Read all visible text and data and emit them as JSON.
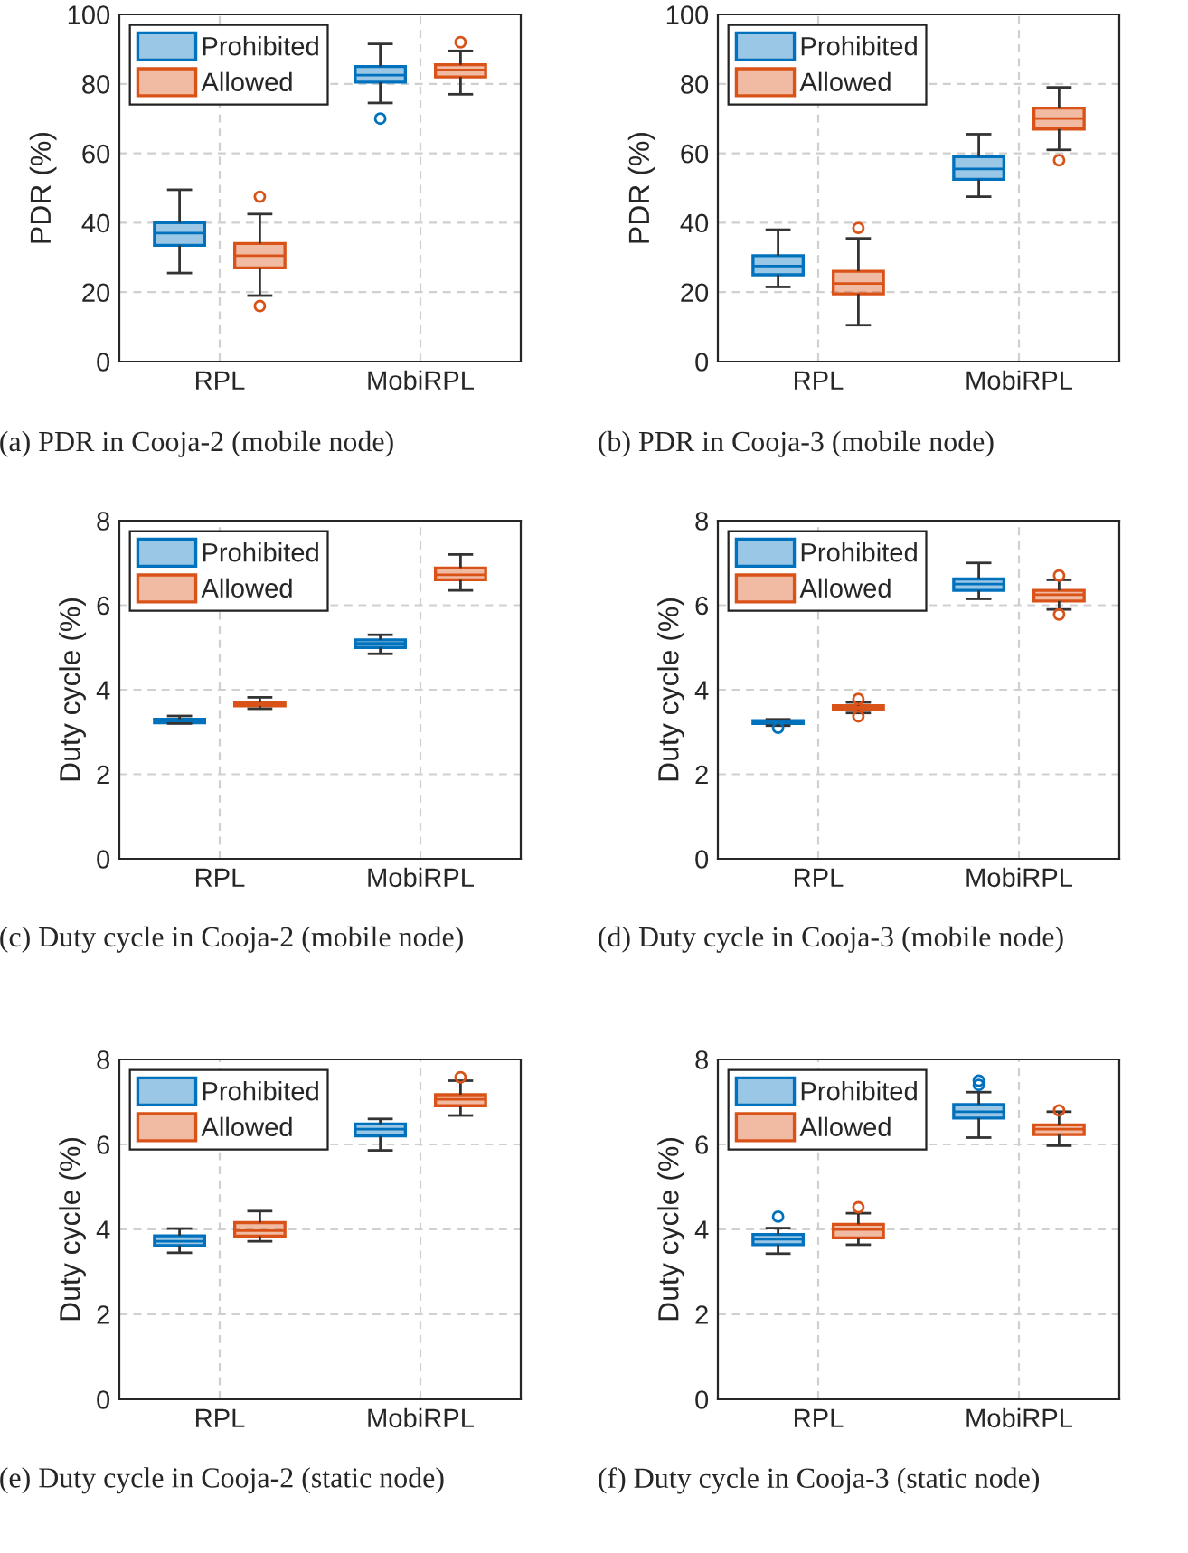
{
  "chart_data": [
    {
      "type": "box",
      "title": "(a) PDR in Cooja-2 (mobile node)",
      "ylabel": "PDR (%)",
      "categories": [
        "RPL",
        "MobiRPL"
      ],
      "ylim": [
        0,
        100
      ],
      "yticks": [
        0,
        20,
        40,
        60,
        80,
        100
      ],
      "grid": true,
      "legend": "top left",
      "series": [
        {
          "name": "Prohibited",
          "color": "#0072bd",
          "boxes": [
            {
              "low": 25.5,
              "q1": 33.5,
              "median": 37,
              "q3": 40,
              "high": 49.5
            },
            {
              "low": 74.5,
              "q1": 80.5,
              "median": 82.5,
              "q3": 85,
              "high": 91.5,
              "outliers": [
                70
              ]
            }
          ]
        },
        {
          "name": "Allowed",
          "color": "#d95319",
          "boxes": [
            {
              "low": 19,
              "q1": 27,
              "median": 30.5,
              "q3": 34,
              "high": 42.5,
              "outliers": [
                47.5,
                16
              ]
            },
            {
              "low": 77,
              "q1": 82,
              "median": 84,
              "q3": 85.5,
              "high": 89.5,
              "outliers": [
                92
              ]
            }
          ]
        }
      ]
    },
    {
      "type": "box",
      "title": "(b) PDR in Cooja-3 (mobile node)",
      "ylabel": "PDR (%)",
      "categories": [
        "RPL",
        "MobiRPL"
      ],
      "ylim": [
        0,
        100
      ],
      "yticks": [
        0,
        20,
        40,
        60,
        80,
        100
      ],
      "grid": true,
      "legend": "top left",
      "series": [
        {
          "name": "Prohibited",
          "color": "#0072bd",
          "boxes": [
            {
              "low": 21.5,
              "q1": 25,
              "median": 27.5,
              "q3": 30.5,
              "high": 38
            },
            {
              "low": 47.5,
              "q1": 52.5,
              "median": 55.5,
              "q3": 59,
              "high": 65.5
            }
          ]
        },
        {
          "name": "Allowed",
          "color": "#d95319",
          "boxes": [
            {
              "low": 10.5,
              "q1": 19.5,
              "median": 22.5,
              "q3": 26,
              "high": 35.5,
              "outliers": [
                38.5
              ]
            },
            {
              "low": 61,
              "q1": 67,
              "median": 70,
              "q3": 73,
              "high": 79,
              "outliers": [
                58
              ]
            }
          ]
        }
      ]
    },
    {
      "type": "box",
      "title": "(c) Duty cycle in Cooja-2 (mobile node)",
      "ylabel": "Duty cycle (%)",
      "categories": [
        "RPL",
        "MobiRPL"
      ],
      "ylim": [
        0,
        8
      ],
      "yticks": [
        0,
        2,
        4,
        6,
        8
      ],
      "grid": true,
      "legend": "top left",
      "series": [
        {
          "name": "Prohibited",
          "color": "#0072bd",
          "boxes": [
            {
              "low": 3.2,
              "q1": 3.22,
              "median": 3.27,
              "q3": 3.3,
              "high": 3.38
            },
            {
              "low": 4.85,
              "q1": 5.0,
              "median": 5.1,
              "q3": 5.18,
              "high": 5.3
            }
          ]
        },
        {
          "name": "Allowed",
          "color": "#d95319",
          "boxes": [
            {
              "low": 3.55,
              "q1": 3.62,
              "median": 3.67,
              "q3": 3.7,
              "high": 3.82
            },
            {
              "low": 6.35,
              "q1": 6.6,
              "median": 6.72,
              "q3": 6.88,
              "high": 7.2
            }
          ]
        }
      ]
    },
    {
      "type": "box",
      "title": "(d) Duty cycle in Cooja-3 (mobile node)",
      "ylabel": "Duty cycle (%)",
      "categories": [
        "RPL",
        "MobiRPL"
      ],
      "ylim": [
        0,
        8
      ],
      "yticks": [
        0,
        2,
        4,
        6,
        8
      ],
      "grid": true,
      "legend": "top left",
      "series": [
        {
          "name": "Prohibited",
          "color": "#0072bd",
          "boxes": [
            {
              "low": 3.15,
              "q1": 3.2,
              "median": 3.23,
              "q3": 3.27,
              "high": 3.3,
              "outliers": [
                3.1
              ]
            },
            {
              "low": 6.15,
              "q1": 6.35,
              "median": 6.5,
              "q3": 6.62,
              "high": 7.0
            }
          ]
        },
        {
          "name": "Allowed",
          "color": "#d95319",
          "boxes": [
            {
              "low": 3.45,
              "q1": 3.52,
              "median": 3.57,
              "q3": 3.62,
              "high": 3.7,
              "outliers": [
                3.78,
                3.37
              ]
            },
            {
              "low": 5.9,
              "q1": 6.1,
              "median": 6.25,
              "q3": 6.35,
              "high": 6.6,
              "outliers": [
                6.7,
                5.78
              ]
            }
          ]
        }
      ]
    },
    {
      "type": "box",
      "title": "(e) Duty cycle in Cooja-2 (static node)",
      "ylabel": "Duty cycle (%)",
      "categories": [
        "RPL",
        "MobiRPL"
      ],
      "ylim": [
        0,
        8
      ],
      "yticks": [
        0,
        2,
        4,
        6,
        8
      ],
      "grid": true,
      "legend": "top left",
      "series": [
        {
          "name": "Prohibited",
          "color": "#0072bd",
          "boxes": [
            {
              "low": 3.45,
              "q1": 3.62,
              "median": 3.72,
              "q3": 3.85,
              "high": 4.02
            },
            {
              "low": 5.86,
              "q1": 6.2,
              "median": 6.36,
              "q3": 6.48,
              "high": 6.6
            }
          ]
        },
        {
          "name": "Allowed",
          "color": "#d95319",
          "boxes": [
            {
              "low": 3.72,
              "q1": 3.84,
              "median": 3.97,
              "q3": 4.16,
              "high": 4.43
            },
            {
              "low": 6.68,
              "q1": 6.91,
              "median": 7.06,
              "q3": 7.17,
              "high": 7.5,
              "outliers": [
                7.58
              ]
            }
          ]
        }
      ]
    },
    {
      "type": "box",
      "title": "(f) Duty cycle in Cooja-3 (static node)",
      "ylabel": "Duty cycle (%)",
      "categories": [
        "RPL",
        "MobiRPL"
      ],
      "ylim": [
        0,
        8
      ],
      "yticks": [
        0,
        2,
        4,
        6,
        8
      ],
      "grid": true,
      "legend": "top left",
      "series": [
        {
          "name": "Prohibited",
          "color": "#0072bd",
          "boxes": [
            {
              "low": 3.43,
              "q1": 3.64,
              "median": 3.77,
              "q3": 3.88,
              "high": 4.03,
              "outliers": [
                4.3
              ]
            },
            {
              "low": 6.16,
              "q1": 6.62,
              "median": 6.77,
              "q3": 6.94,
              "high": 7.23,
              "outliers": [
                7.4,
                7.5
              ]
            }
          ]
        },
        {
          "name": "Allowed",
          "color": "#d95319",
          "boxes": [
            {
              "low": 3.64,
              "q1": 3.8,
              "median": 4.0,
              "q3": 4.12,
              "high": 4.38,
              "outliers": [
                4.52
              ]
            },
            {
              "low": 5.97,
              "q1": 6.23,
              "median": 6.36,
              "q3": 6.46,
              "high": 6.77,
              "outliers": [
                6.8
              ]
            }
          ]
        }
      ]
    }
  ]
}
